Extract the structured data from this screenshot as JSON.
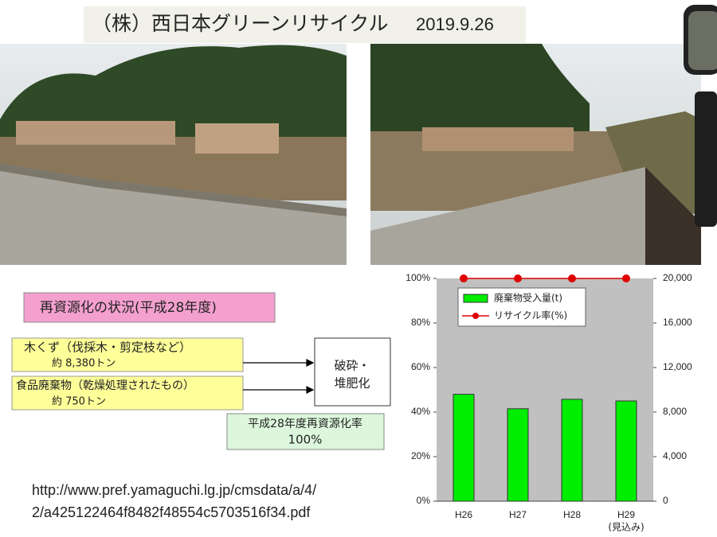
{
  "title": "（株）西日本グリーンリサイクル",
  "date": "2019.9.26",
  "status_heading": "再資源化の状況(平成28年度)",
  "sources": [
    {
      "label": "木くず（伐採木・剪定枝など）",
      "amount": "約 8,380トン"
    },
    {
      "label": "食品廃棄物（乾燥処理されたもの）",
      "amount": "約 750トン"
    }
  ],
  "process": [
    "破砕・",
    "堆肥化"
  ],
  "rate": {
    "label": "平成28年度再資源化率",
    "value": "100%"
  },
  "url": [
    "http://www.pref.yamaguchi.lg.jp/cmsdata/a/4/",
    "2/a425122464f8482f48554c5703516f34.pdf"
  ],
  "chart_data": {
    "type": "bar",
    "categories": [
      "H26",
      "H27",
      "H28",
      "H29"
    ],
    "category_note": "(見込み)",
    "series": [
      {
        "name": "廃棄物受入量(t)",
        "type": "bar",
        "axis": "y2",
        "color": "#00ee00",
        "values": [
          9600,
          8300,
          9150,
          9000
        ]
      },
      {
        "name": "リサイクル率(%)",
        "type": "line",
        "color": "#e00000",
        "values": [
          100,
          100,
          100,
          100
        ]
      }
    ],
    "ylim": [
      0,
      100
    ],
    "yticks": [
      {
        "value": 0,
        "label": "0%"
      },
      {
        "value": 20,
        "label": "20%"
      },
      {
        "value": 40,
        "label": "40%"
      },
      {
        "value": 60,
        "label": "60%"
      },
      {
        "value": 80,
        "label": "80%"
      },
      {
        "value": 100,
        "label": "100%"
      }
    ],
    "y2lim": [
      0,
      20000
    ],
    "y2ticks": [
      0,
      {
        "value": 4000,
        "label": "4,000"
      },
      {
        "value": 8000,
        "label": "8,000"
      },
      {
        "value": 12000,
        "label": "12,000"
      },
      {
        "value": 16000,
        "label": "16,000"
      },
      {
        "value": 20000,
        "label": "20,000"
      }
    ],
    "background": "#c0c0c0"
  }
}
